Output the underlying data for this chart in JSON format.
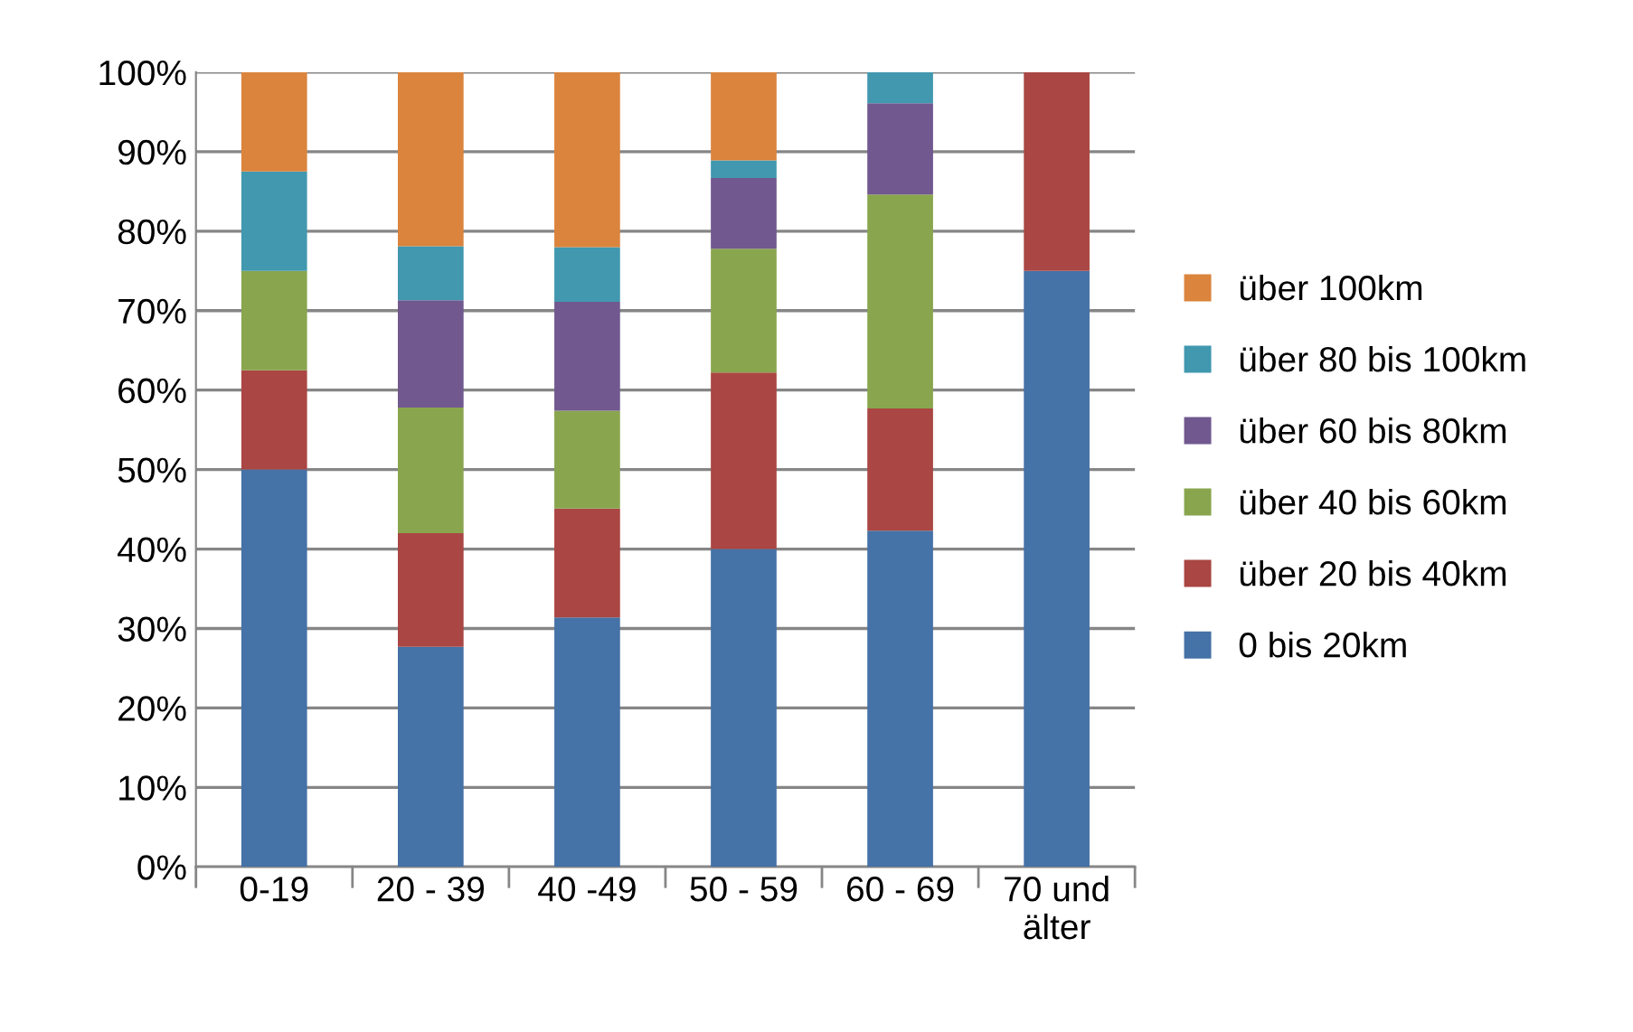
{
  "chart_data": {
    "type": "bar",
    "stacked": true,
    "categories": [
      "0-19",
      "20 - 39",
      "40 -49",
      "50 - 59",
      "60 - 69",
      "70 und\nälter"
    ],
    "series": [
      {
        "name": "0 bis 20km",
        "color": "#4572a7",
        "values": [
          50,
          27.7,
          31.4,
          40,
          42.3,
          75
        ]
      },
      {
        "name": "über 20 bis 40km",
        "color": "#aa4643",
        "values": [
          12.5,
          14.3,
          13.7,
          22.2,
          15.4,
          25
        ]
      },
      {
        "name": "über 40 bis 60km",
        "color": "#89a54e",
        "values": [
          12.5,
          15.8,
          12.3,
          15.6,
          26.9,
          0
        ]
      },
      {
        "name": "über 60 bis 80km",
        "color": "#71588f",
        "values": [
          0,
          13.5,
          13.7,
          8.9,
          11.5,
          0
        ]
      },
      {
        "name": "über 80 bis 100km",
        "color": "#4198af",
        "values": [
          12.5,
          6.8,
          6.9,
          2.2,
          3.9,
          0
        ]
      },
      {
        "name": "über 100km",
        "color": "#db843d",
        "values": [
          12.5,
          21.9,
          22.0,
          11.1,
          0,
          0
        ]
      }
    ],
    "ylim": [
      0,
      100
    ],
    "yticks": [
      {
        "value": 0,
        "label": "0%"
      },
      {
        "value": 10,
        "label": "10%"
      },
      {
        "value": 20,
        "label": "20%"
      },
      {
        "value": 30,
        "label": "30%"
      },
      {
        "value": 40,
        "label": "40%"
      },
      {
        "value": 50,
        "label": "50%"
      },
      {
        "value": 60,
        "label": "60%"
      },
      {
        "value": 70,
        "label": "70%"
      },
      {
        "value": 80,
        "label": "80%"
      },
      {
        "value": 90,
        "label": "90%"
      },
      {
        "value": 100,
        "label": "100%"
      }
    ],
    "grid": "y",
    "legend": "right"
  }
}
